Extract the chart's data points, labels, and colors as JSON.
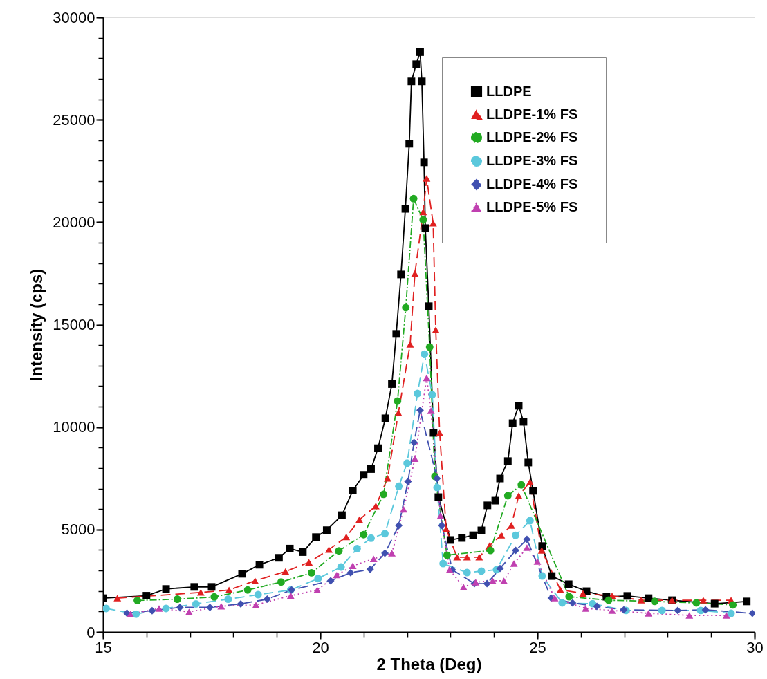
{
  "chart_data": {
    "type": "line",
    "xlabel": "2 Theta (Deg)",
    "ylabel": "Intensity (cps)",
    "xlim": [
      15,
      30
    ],
    "ylim": [
      0,
      30000
    ],
    "xticks": [
      15,
      {
        "value": 16,
        "label": null
      },
      {
        "value": 17,
        "label": null
      },
      {
        "value": 18,
        "label": null
      },
      {
        "value": 19,
        "label": null
      },
      20,
      {
        "value": 21,
        "label": null
      },
      {
        "value": 22,
        "label": null
      },
      {
        "value": 23,
        "label": null
      },
      {
        "value": 24,
        "label": null
      },
      25,
      {
        "value": 26,
        "label": null
      },
      {
        "value": 27,
        "label": null
      },
      {
        "value": 28,
        "label": null
      },
      {
        "value": 29,
        "label": null
      },
      30
    ],
    "yticks": [
      0,
      {
        "value": 1000,
        "label": null
      },
      {
        "value": 2000,
        "label": null
      },
      {
        "value": 3000,
        "label": null
      },
      {
        "value": 4000,
        "label": null
      },
      5000,
      {
        "value": 6000,
        "label": null
      },
      {
        "value": 7000,
        "label": null
      },
      {
        "value": 8000,
        "label": null
      },
      {
        "value": 9000,
        "label": null
      },
      10000,
      {
        "value": 11000,
        "label": null
      },
      {
        "value": 12000,
        "label": null
      },
      {
        "value": 13000,
        "label": null
      },
      {
        "value": 14000,
        "label": null
      },
      15000,
      {
        "value": 16000,
        "label": null
      },
      {
        "value": 17000,
        "label": null
      },
      {
        "value": 18000,
        "label": null
      },
      {
        "value": 19000,
        "label": null
      },
      20000,
      {
        "value": 21000,
        "label": null
      },
      {
        "value": 22000,
        "label": null
      },
      {
        "value": 23000,
        "label": null
      },
      {
        "value": 24000,
        "label": null
      },
      25000,
      {
        "value": 26000,
        "label": null
      },
      {
        "value": 27000,
        "label": null
      },
      {
        "value": 28000,
        "label": null
      },
      {
        "value": 29000,
        "label": null
      },
      30000
    ],
    "grid": false,
    "legend": "top right",
    "series": [
      {
        "name": "LLDPE",
        "color": "#000000",
        "marker": "square",
        "line_style": "solid",
        "x": [
          15.0,
          16.0,
          16.45,
          17.1,
          17.5,
          18.2,
          18.6,
          19.05,
          19.3,
          19.6,
          19.9,
          20.15,
          20.5,
          20.75,
          21.0,
          21.17,
          21.33,
          21.5,
          21.65,
          21.75,
          21.86,
          21.96,
          22.05,
          22.1,
          22.21,
          22.3,
          22.34,
          22.39,
          22.42,
          22.5,
          22.61,
          22.72,
          23.0,
          23.26,
          23.52,
          23.71,
          23.85,
          24.03,
          24.14,
          24.32,
          24.43,
          24.57,
          24.68,
          24.79,
          24.9,
          25.11,
          25.33,
          25.72,
          26.13,
          26.59,
          27.07,
          27.56,
          28.1,
          29.08,
          29.82
        ],
        "values": [
          1650,
          1770,
          2100,
          2200,
          2200,
          2840,
          3280,
          3620,
          4070,
          3900,
          4630,
          4970,
          5700,
          6900,
          7670,
          7950,
          8970,
          10430,
          12100,
          14550,
          17450,
          20650,
          23830,
          26870,
          27710,
          28300,
          26870,
          22920,
          19710,
          15900,
          9720,
          6580,
          4490,
          4590,
          4720,
          4960,
          6180,
          6410,
          7490,
          8340,
          10190,
          11040,
          10260,
          8270,
          6890,
          4190,
          2730,
          2330,
          1990,
          1720,
          1760,
          1650,
          1550,
          1380,
          1490
        ]
      },
      {
        "name": "LLDPE-1% FS",
        "color": "#e02020",
        "marker": "triangle",
        "line_style": "dashed",
        "x": [
          15.33,
          17.25,
          17.9,
          18.5,
          19.2,
          19.74,
          20.2,
          20.6,
          20.9,
          21.28,
          21.55,
          21.8,
          22.07,
          22.18,
          22.37,
          22.45,
          22.6,
          22.66,
          22.75,
          22.9,
          23.15,
          23.38,
          23.66,
          23.9,
          24.17,
          24.4,
          24.57,
          24.83,
          25.1,
          25.53,
          26.05,
          26.72,
          27.39,
          28.1,
          28.82,
          29.46
        ],
        "values": [
          1650,
          1930,
          2050,
          2500,
          2950,
          3400,
          4020,
          4640,
          5480,
          6150,
          7500,
          10700,
          14040,
          17500,
          20500,
          22140,
          19950,
          14750,
          9720,
          5030,
          3650,
          3650,
          3650,
          4220,
          4720,
          5200,
          6650,
          7320,
          3980,
          2060,
          1880,
          1760,
          1550,
          1550,
          1550,
          1550
        ]
      },
      {
        "name": "LLDPE-2% FS",
        "color": "#22aa22",
        "marker": "circle",
        "line_style": "dashdot",
        "x": [
          15.79,
          16.71,
          17.56,
          18.33,
          19.1,
          19.8,
          20.43,
          21.0,
          21.46,
          21.78,
          21.97,
          22.15,
          22.37,
          22.52,
          22.64,
          22.92,
          23.92,
          24.32,
          24.63,
          25.73,
          26.64,
          27.7,
          28.66,
          29.5
        ],
        "values": [
          1540,
          1600,
          1710,
          2050,
          2440,
          2890,
          3960,
          4750,
          6720,
          11270,
          15830,
          21150,
          20110,
          13900,
          7600,
          3750,
          3980,
          6650,
          7180,
          1720,
          1550,
          1490,
          1420,
          1320
        ]
      },
      {
        "name": "LLDPE-3% FS",
        "color": "#5bc8dc",
        "marker": "circle",
        "line_style": "dashed",
        "x": [
          15.07,
          15.76,
          16.45,
          17.14,
          17.88,
          18.57,
          19.32,
          19.95,
          20.48,
          20.85,
          21.17,
          21.49,
          21.81,
          22.0,
          22.24,
          22.4,
          22.58,
          22.69,
          22.83,
          23.38,
          23.71,
          24.06,
          24.5,
          24.83,
          25.11,
          25.57,
          26.27,
          27.04,
          27.87,
          28.76,
          29.46
        ],
        "values": [
          1150,
          870,
          1150,
          1370,
          1600,
          1820,
          2050,
          2610,
          3170,
          4070,
          4580,
          4800,
          7110,
          8240,
          11640,
          13560,
          11580,
          7050,
          3340,
          2900,
          2970,
          3040,
          4720,
          5430,
          2730,
          1420,
          1380,
          1050,
          1050,
          1050,
          910
        ]
      },
      {
        "name": "LLDPE-4% FS",
        "color": "#4050b0",
        "marker": "diamond",
        "line_style": "dashed",
        "x": [
          15.55,
          16.13,
          16.77,
          17.46,
          18.17,
          18.78,
          19.34,
          20.24,
          20.7,
          21.15,
          21.49,
          21.81,
          22.02,
          22.16,
          22.3,
          22.69,
          22.8,
          23.04,
          23.55,
          23.84,
          24.14,
          24.5,
          24.76,
          25.32,
          25.81,
          26.37,
          26.99,
          28.23,
          28.87,
          29.95
        ],
        "values": [
          920,
          1040,
          1200,
          1200,
          1370,
          1600,
          2050,
          2500,
          2890,
          3060,
          3850,
          5200,
          7340,
          9250,
          10820,
          7490,
          5200,
          3040,
          2360,
          2360,
          3100,
          3980,
          4520,
          1650,
          1420,
          1250,
          1080,
          1050,
          1080,
          910
        ]
      },
      {
        "name": "LLDPE-5% FS",
        "color": "#c040b0",
        "marker": "triangle",
        "line_style": "dotted",
        "x": [
          15.63,
          16.29,
          16.98,
          17.72,
          18.52,
          19.32,
          19.93,
          20.38,
          20.75,
          21.23,
          21.65,
          21.92,
          22.18,
          22.45,
          22.55,
          22.77,
          22.98,
          23.3,
          23.58,
          23.97,
          24.23,
          24.46,
          24.76,
          25.0,
          25.4,
          26.11,
          26.72,
          27.56,
          28.5,
          29.35
        ],
        "values": [
          870,
          1150,
          980,
          1260,
          1320,
          1770,
          2050,
          2780,
          3230,
          3570,
          3850,
          5990,
          8460,
          12400,
          10800,
          5670,
          3040,
          2190,
          2430,
          2500,
          2500,
          3340,
          4120,
          3440,
          1650,
          1150,
          1050,
          910,
          810,
          810
        ]
      }
    ]
  }
}
